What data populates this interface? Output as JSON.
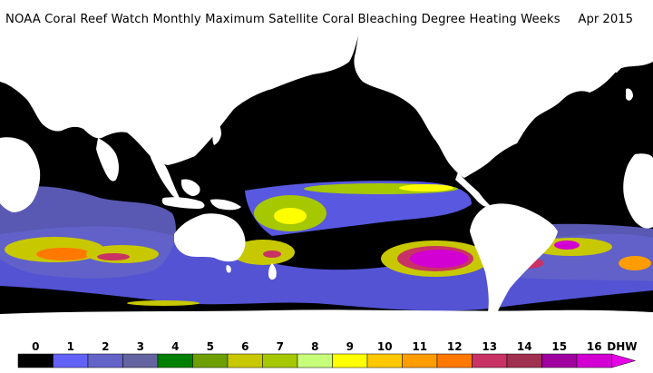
{
  "header": {
    "title": "NOAA Coral Reef Watch Monthly Maximum Satellite Coral Bleaching Degree Heating Weeks",
    "date": "Apr 2015"
  },
  "map": {
    "ocean_color": "#000000",
    "land_color": "#ffffff"
  },
  "legend": {
    "unit": "DHW",
    "ticks": [
      "0",
      "1",
      "2",
      "3",
      "4",
      "5",
      "6",
      "7",
      "8",
      "9",
      "10",
      "11",
      "12",
      "13",
      "14",
      "15",
      "16"
    ],
    "colors": [
      "#000000",
      "#6262f9",
      "#6363c8",
      "#6464a0",
      "#008000",
      "#6e9f00",
      "#c8c800",
      "#a6c800",
      "#c8ff7a",
      "#ffff00",
      "#ffc800",
      "#ff9c00",
      "#ff7800",
      "#c83264",
      "#a03050",
      "#a000a0",
      "#d200d2"
    ],
    "arrow_color": "#e600e6"
  }
}
